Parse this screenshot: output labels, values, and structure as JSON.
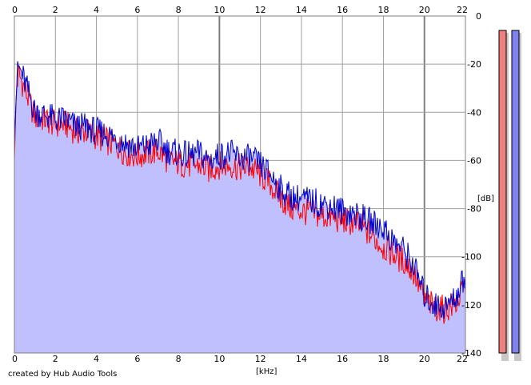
{
  "credit": "created by Hub Audio Tools",
  "colors": {
    "background": "#ffffff",
    "fill": "#c0c0ff",
    "series_left": "#ff0000",
    "series_right": "#0000cc",
    "grid": "#a0a0a0",
    "grid_major": "#808080",
    "meter_left": "#f08080",
    "meter_right": "#8080f0"
  },
  "chart_data": {
    "type": "line",
    "xlabel": "[kHz]",
    "ylabel": "[dB]",
    "xlim": [
      0,
      22
    ],
    "ylim": [
      -140,
      0
    ],
    "x_ticks": [
      "0",
      "2",
      "4",
      "6",
      "8",
      "10",
      "12",
      "14",
      "16",
      "18",
      "20",
      "22"
    ],
    "y_ticks": [
      "0",
      "-20",
      "-40",
      "-60",
      "-80",
      "-100",
      "-120",
      "-140"
    ],
    "grid": true,
    "filled": true,
    "series": [
      {
        "x": [
          0,
          0.1,
          0.2,
          0.4,
          0.7,
          1.0,
          1.5,
          2.0,
          2.5,
          3.0,
          3.5,
          4.0,
          4.5,
          5.0,
          5.5,
          6.0,
          6.5,
          7.0,
          7.5,
          8.0,
          8.5,
          9.0,
          9.5,
          10.0,
          10.5,
          11.0,
          11.5,
          12.0,
          12.5,
          13.0,
          13.5,
          14.0,
          14.5,
          15.0,
          15.5,
          16.0,
          16.5,
          17.0,
          17.5,
          18.0,
          18.5,
          19.0,
          19.5,
          20.0,
          20.5,
          21.0,
          21.5,
          22.0
        ],
        "values": [
          -60,
          -30,
          -24,
          -28,
          -35,
          -42,
          -43,
          -45,
          -45,
          -48,
          -48,
          -50,
          -52,
          -54,
          -57,
          -58,
          -57,
          -56,
          -60,
          -61,
          -62,
          -62,
          -64,
          -62,
          -62,
          -63,
          -63,
          -66,
          -70,
          -76,
          -80,
          -81,
          -82,
          -83,
          -84,
          -85,
          -86,
          -88,
          -92,
          -96,
          -99,
          -102,
          -107,
          -118,
          -121,
          -122,
          -120,
          -112
        ]
      },
      {
        "x": [
          0,
          0.1,
          0.2,
          0.4,
          0.7,
          1.0,
          1.5,
          2.0,
          2.5,
          3.0,
          3.5,
          4.0,
          4.5,
          5.0,
          5.5,
          6.0,
          6.5,
          7.0,
          7.5,
          8.0,
          8.5,
          9.0,
          9.5,
          10.0,
          10.5,
          11.0,
          11.5,
          12.0,
          12.5,
          13.0,
          13.5,
          14.0,
          14.5,
          15.0,
          15.5,
          16.0,
          16.5,
          17.0,
          17.5,
          18.0,
          18.5,
          19.0,
          19.5,
          20.0,
          20.5,
          21.0,
          21.5,
          22.0
        ],
        "values": [
          -55,
          -28,
          -21,
          -25,
          -32,
          -40,
          -41,
          -43,
          -43,
          -46,
          -46,
          -48,
          -49,
          -51,
          -53,
          -55,
          -54,
          -52,
          -56,
          -57,
          -58,
          -57,
          -60,
          -58,
          -57,
          -59,
          -59,
          -62,
          -66,
          -72,
          -75,
          -76,
          -77,
          -78,
          -79,
          -81,
          -82,
          -84,
          -86,
          -88,
          -94,
          -97,
          -104,
          -116,
          -120,
          -121,
          -117,
          -108
        ]
      }
    ]
  },
  "meters": [
    {
      "value": -6
    },
    {
      "value": -6
    }
  ]
}
